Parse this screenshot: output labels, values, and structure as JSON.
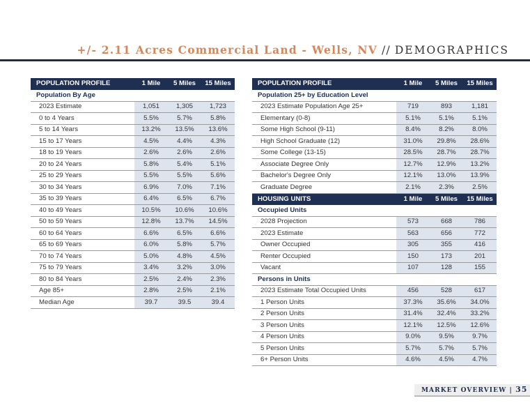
{
  "header": {
    "title_main": "+/- 2.11 Acres Commercial Land - Wells, NV",
    "title_sep": "//",
    "title_tail": "DEMOGRAPHICS"
  },
  "footer": {
    "section": "MARKET OVERVIEW |",
    "page": "35"
  },
  "left_table": {
    "sections": [
      {
        "type": "header",
        "label": "POPULATION PROFILE",
        "cols": [
          "1 Mile",
          "5 Miles",
          "15 Miles"
        ]
      },
      {
        "type": "sub",
        "label": "Population By Age"
      },
      {
        "label": "2023 Estimate",
        "values": [
          "1,051",
          "1,305",
          "1,723"
        ]
      },
      {
        "label": "0 to 4 Years",
        "values": [
          "5.5%",
          "5.7%",
          "5.8%"
        ]
      },
      {
        "label": "5 to 14 Years",
        "values": [
          "13.2%",
          "13.5%",
          "13.6%"
        ]
      },
      {
        "label": "15 to 17 Years",
        "values": [
          "4.5%",
          "4.4%",
          "4.3%"
        ]
      },
      {
        "label": "18 to 19 Years",
        "values": [
          "2.6%",
          "2.6%",
          "2.6%"
        ]
      },
      {
        "label": "20 to 24 Years",
        "values": [
          "5.8%",
          "5.4%",
          "5.1%"
        ]
      },
      {
        "label": "25 to 29 Years",
        "values": [
          "5.5%",
          "5.5%",
          "5.6%"
        ]
      },
      {
        "label": "30 to 34 Years",
        "values": [
          "6.9%",
          "7.0%",
          "7.1%"
        ]
      },
      {
        "label": "35 to 39 Years",
        "values": [
          "6.4%",
          "6.5%",
          "6.7%"
        ]
      },
      {
        "label": "40 to 49 Years",
        "values": [
          "10.5%",
          "10.6%",
          "10.6%"
        ]
      },
      {
        "label": "50 to 59 Years",
        "values": [
          "12.8%",
          "13.7%",
          "14.5%"
        ]
      },
      {
        "label": "60 to 64 Years",
        "values": [
          "6.6%",
          "6.5%",
          "6.6%"
        ]
      },
      {
        "label": "65 to 69 Years",
        "values": [
          "6.0%",
          "5.8%",
          "5.7%"
        ]
      },
      {
        "label": "70 to 74 Years",
        "values": [
          "5.0%",
          "4.8%",
          "4.5%"
        ]
      },
      {
        "label": "75 to 79 Years",
        "values": [
          "3.4%",
          "3.2%",
          "3.0%"
        ]
      },
      {
        "label": "80 to 84 Years",
        "values": [
          "2.5%",
          "2.4%",
          "2.3%"
        ]
      },
      {
        "label": "Age 85+",
        "values": [
          "2.8%",
          "2.5%",
          "2.1%"
        ]
      },
      {
        "label": "Median Age",
        "values": [
          "39.7",
          "39.5",
          "39.4"
        ]
      }
    ]
  },
  "right_table": {
    "sections": [
      {
        "type": "header",
        "label": "POPULATION PROFILE",
        "cols": [
          "1 Mile",
          "5 Miles",
          "15 Miles"
        ]
      },
      {
        "type": "sub",
        "label": "Population 25+ by Education Level"
      },
      {
        "label": "2023 Estimate Population Age 25+",
        "values": [
          "719",
          "893",
          "1,181"
        ]
      },
      {
        "label": "Elementary (0-8)",
        "values": [
          "5.1%",
          "5.1%",
          "5.1%"
        ]
      },
      {
        "label": "Some High School (9-11)",
        "values": [
          "8.4%",
          "8.2%",
          "8.0%"
        ]
      },
      {
        "label": "High School Graduate (12)",
        "values": [
          "31.0%",
          "29.8%",
          "28.6%"
        ]
      },
      {
        "label": "Some College (13-15)",
        "values": [
          "28.5%",
          "28.7%",
          "28.7%"
        ]
      },
      {
        "label": "Associate Degree Only",
        "values": [
          "12.7%",
          "12.9%",
          "13.2%"
        ]
      },
      {
        "label": "Bachelor's Degree Only",
        "values": [
          "12.1%",
          "13.0%",
          "13.9%"
        ]
      },
      {
        "label": "Graduate Degree",
        "values": [
          "2.1%",
          "2.3%",
          "2.5%"
        ]
      },
      {
        "type": "header",
        "label": "HOUSING UNITS",
        "cols": [
          "1 Mile",
          "5 Miles",
          "15 Miles"
        ]
      },
      {
        "type": "sub",
        "label": "Occupied Units"
      },
      {
        "label": "2028 Projection",
        "values": [
          "573",
          "668",
          "786"
        ]
      },
      {
        "label": "2023 Estimate",
        "values": [
          "563",
          "656",
          "772"
        ]
      },
      {
        "label": "Owner Occupied",
        "values": [
          "305",
          "355",
          "416"
        ]
      },
      {
        "label": "Renter Occupied",
        "values": [
          "150",
          "173",
          "201"
        ]
      },
      {
        "label": "Vacant",
        "values": [
          "107",
          "128",
          "155"
        ]
      },
      {
        "type": "sub",
        "label": "Persons in Units"
      },
      {
        "label": "2023 Estimate Total Occupied Units",
        "values": [
          "456",
          "528",
          "617"
        ]
      },
      {
        "label": "1 Person Units",
        "values": [
          "37.3%",
          "35.6%",
          "34.0%"
        ]
      },
      {
        "label": "2 Person Units",
        "values": [
          "31.4%",
          "32.4%",
          "33.2%"
        ]
      },
      {
        "label": "3 Person Units",
        "values": [
          "12.1%",
          "12.5%",
          "12.6%"
        ]
      },
      {
        "label": "4 Person Units",
        "values": [
          "9.0%",
          "9.5%",
          "9.7%"
        ]
      },
      {
        "label": "5 Person Units",
        "values": [
          "5.7%",
          "5.7%",
          "5.7%"
        ]
      },
      {
        "label": "6+ Person Units",
        "values": [
          "4.6%",
          "4.5%",
          "4.7%"
        ]
      }
    ]
  }
}
